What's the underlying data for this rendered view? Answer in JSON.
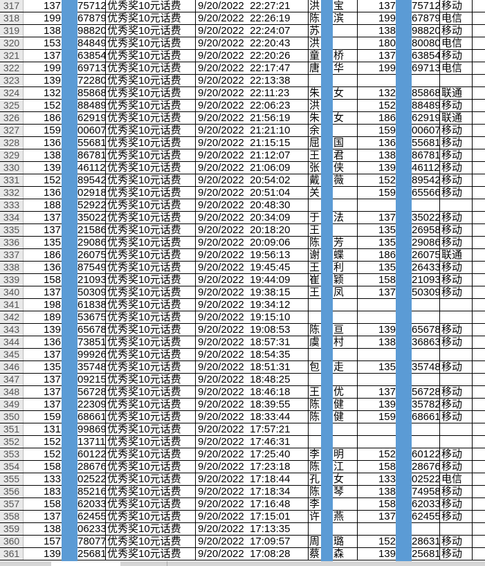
{
  "sheet": {
    "mask_color": "#5b9bd5",
    "rows": [
      [
        "317",
        "137",
        "75712",
        "优秀奖10元话费",
        "9/20/2022  22:27:21",
        "洪",
        "宝",
        "137",
        "75712",
        "移动"
      ],
      [
        "318",
        "199",
        "67879",
        "优秀奖10元话费",
        "9/20/2022  22:26:19",
        "陈",
        "滨",
        "199",
        "67879",
        "电信"
      ],
      [
        "319",
        "138",
        "98820",
        "优秀奖10元话费",
        "9/20/2022  22:24:07",
        "苏",
        "",
        "138",
        "98820",
        "移动"
      ],
      [
        "320",
        "153",
        "84849",
        "优秀奖10元话费",
        "9/20/2022  22:20:43",
        "洪",
        "",
        "180",
        "80080",
        "电信"
      ],
      [
        "321",
        "137",
        "63854",
        "优秀奖10元话费",
        "9/20/2022  22:20:26",
        "童",
        "桥",
        "137",
        "63854",
        "移动"
      ],
      [
        "322",
        "199",
        "69713",
        "优秀奖10元话费",
        "9/20/2022  22:17:47",
        "唐",
        "华",
        "199",
        "69713",
        "电信"
      ],
      [
        "323",
        "139",
        "72280",
        "优秀奖10元话费",
        "9/20/2022  22:13:38",
        "",
        "",
        "",
        "",
        ""
      ],
      [
        "324",
        "132",
        "85868",
        "优秀奖10元话费",
        "9/20/2022  22:11:23",
        "朱",
        "女",
        "132",
        "85868",
        "联通"
      ],
      [
        "325",
        "152",
        "88489",
        "优秀奖10元话费",
        "9/20/2022  22:06:23",
        "洪",
        "",
        "152",
        "88489",
        "移动"
      ],
      [
        "326",
        "186",
        "62919",
        "优秀奖10元话费",
        "9/20/2022  21:56:19",
        "朱",
        "女",
        "186",
        "62919",
        "联通"
      ],
      [
        "327",
        "159",
        "00607",
        "优秀奖10元话费",
        "9/20/2022  21:21:10",
        "余",
        "",
        "159",
        "00607",
        "移动"
      ],
      [
        "328",
        "136",
        "55681",
        "优秀奖10元话费",
        "9/20/2022  21:15:15",
        "屈",
        "国",
        "136",
        "55681",
        "移动"
      ],
      [
        "329",
        "138",
        "86781",
        "优秀奖10元话费",
        "9/20/2022  21:12:07",
        "王",
        "君",
        "138",
        "86781",
        "移动"
      ],
      [
        "330",
        "139",
        "46112",
        "优秀奖10元话费",
        "9/20/2022  21:06:09",
        "张",
        "侠",
        "139",
        "46112",
        "移动"
      ],
      [
        "331",
        "152",
        "89542",
        "优秀奖10元话费",
        "9/20/2022  20:54:02",
        "戴",
        "薇",
        "152",
        "89542",
        "移动"
      ],
      [
        "332",
        "136",
        "02918",
        "优秀奖10元话费",
        "9/20/2022  20:51:04",
        "关",
        "",
        "159",
        "65566",
        "移动"
      ],
      [
        "333",
        "188",
        "52922",
        "优秀奖10元话费",
        "9/20/2022  20:48:30",
        "",
        "",
        "",
        "",
        ""
      ],
      [
        "334",
        "137",
        "35022",
        "优秀奖10元话费",
        "9/20/2022  20:34:09",
        "于",
        "法",
        "137",
        "35022",
        "移动"
      ],
      [
        "335",
        "137",
        "21586",
        "优秀奖10元话费",
        "9/20/2022  20:18:20",
        "王",
        "",
        "135",
        "26958",
        "移动"
      ],
      [
        "336",
        "135",
        "29086",
        "优秀奖10元话费",
        "9/20/2022  20:09:06",
        "陈",
        "芳",
        "135",
        "29086",
        "移动"
      ],
      [
        "337",
        "186",
        "26075",
        "优秀奖10元话费",
        "9/20/2022  19:56:13",
        "谢",
        "蝶",
        "186",
        "26075",
        "联通"
      ],
      [
        "338",
        "136",
        "87549",
        "优秀奖10元话费",
        "9/20/2022  19:45:45",
        "王",
        "利",
        "135",
        "26433",
        "移动"
      ],
      [
        "339",
        "158",
        "21093",
        "优秀奖10元话费",
        "9/20/2022  19:44:09",
        "崔",
        "颖",
        "158",
        "21093",
        "移动"
      ],
      [
        "340",
        "137",
        "50309",
        "优秀奖10元话费",
        "9/20/2022  19:38:15",
        "王",
        "凤",
        "137",
        "50309",
        "移动"
      ],
      [
        "341",
        "198",
        "61838",
        "优秀奖10元话费",
        "9/20/2022  19:34:12",
        "",
        "",
        "",
        "",
        ""
      ],
      [
        "342",
        "189",
        "53675",
        "优秀奖10元话费",
        "9/20/2022  19:15:10",
        "",
        "",
        "",
        "",
        ""
      ],
      [
        "343",
        "139",
        "65678",
        "优秀奖10元话费",
        "9/20/2022  19:08:53",
        "陈",
        "亘",
        "139",
        "65678",
        "移动"
      ],
      [
        "344",
        "136",
        "73851",
        "优秀奖10元话费",
        "9/20/2022  18:57:31",
        "虞",
        "村",
        "138",
        "36863",
        "移动"
      ],
      [
        "345",
        "137",
        "99926",
        "优秀奖10元话费",
        "9/20/2022  18:54:35",
        "",
        "",
        "",
        "",
        ""
      ],
      [
        "346",
        "135",
        "35748",
        "优秀奖10元话费",
        "9/20/2022  18:51:31",
        "包",
        "走",
        "135",
        "35748",
        "移动"
      ],
      [
        "347",
        "137",
        "09215",
        "优秀奖10元话费",
        "9/20/2022  18:48:25",
        "",
        "",
        "",
        "",
        ""
      ],
      [
        "348",
        "137",
        "56728",
        "优秀奖10元话费",
        "9/20/2022  18:46:18",
        "王",
        "优",
        "137",
        "56728",
        "移动"
      ],
      [
        "349",
        "137",
        "22309",
        "优秀奖10元话费",
        "9/20/2022  18:39:55",
        "陈",
        "健",
        "139",
        "35782",
        "移动"
      ],
      [
        "350",
        "159",
        "68661",
        "优秀奖10元话费",
        "9/20/2022  18:33:44",
        "陈",
        "健",
        "159",
        "68661",
        "移动"
      ],
      [
        "351",
        "131",
        "99869",
        "优秀奖10元话费",
        "9/20/2022  17:57:21",
        "",
        "",
        "",
        "",
        ""
      ],
      [
        "352",
        "152",
        "13711",
        "优秀奖10元话费",
        "9/20/2022  17:46:31",
        "",
        "",
        "",
        "",
        ""
      ],
      [
        "353",
        "152",
        "60122",
        "优秀奖10元话费",
        "9/20/2022  17:25:40",
        "李",
        "明",
        "152",
        "60122",
        "移动"
      ],
      [
        "354",
        "158",
        "28676",
        "优秀奖10元话费",
        "9/20/2022  17:23:18",
        "陈",
        "江",
        "158",
        "28676",
        "移动"
      ],
      [
        "355",
        "133",
        "02522",
        "优秀奖10元话费",
        "9/20/2022  17:18:44",
        "孔",
        "女",
        "133",
        "02522",
        "电信"
      ],
      [
        "356",
        "183",
        "85216",
        "优秀奖10元话费",
        "9/20/2022  17:18:34",
        "陈",
        "琴",
        "138",
        "74958",
        "移动"
      ],
      [
        "357",
        "158",
        "62033",
        "优秀奖10元话费",
        "9/20/2022  17:16:48",
        "李",
        "",
        "158",
        "62033",
        "移动"
      ],
      [
        "358",
        "137",
        "62455",
        "优秀奖10元话费",
        "9/20/2022  17:15:01",
        "许",
        "燕",
        "137",
        "62455",
        "移动"
      ],
      [
        "359",
        "138",
        "06233",
        "优秀奖10元话费",
        "9/20/2022  17:13:35",
        "",
        "",
        "",
        "",
        ""
      ],
      [
        "360",
        "157",
        "78077",
        "优秀奖10元话费",
        "9/20/2022  17:09:57",
        "周",
        "璐",
        "152",
        "28631",
        "移动"
      ],
      [
        "361",
        "139",
        "25681",
        "优秀奖10元话费",
        "9/20/2022  17:08:28",
        "蔡",
        "森",
        "139",
        "25681",
        "移动"
      ]
    ]
  }
}
